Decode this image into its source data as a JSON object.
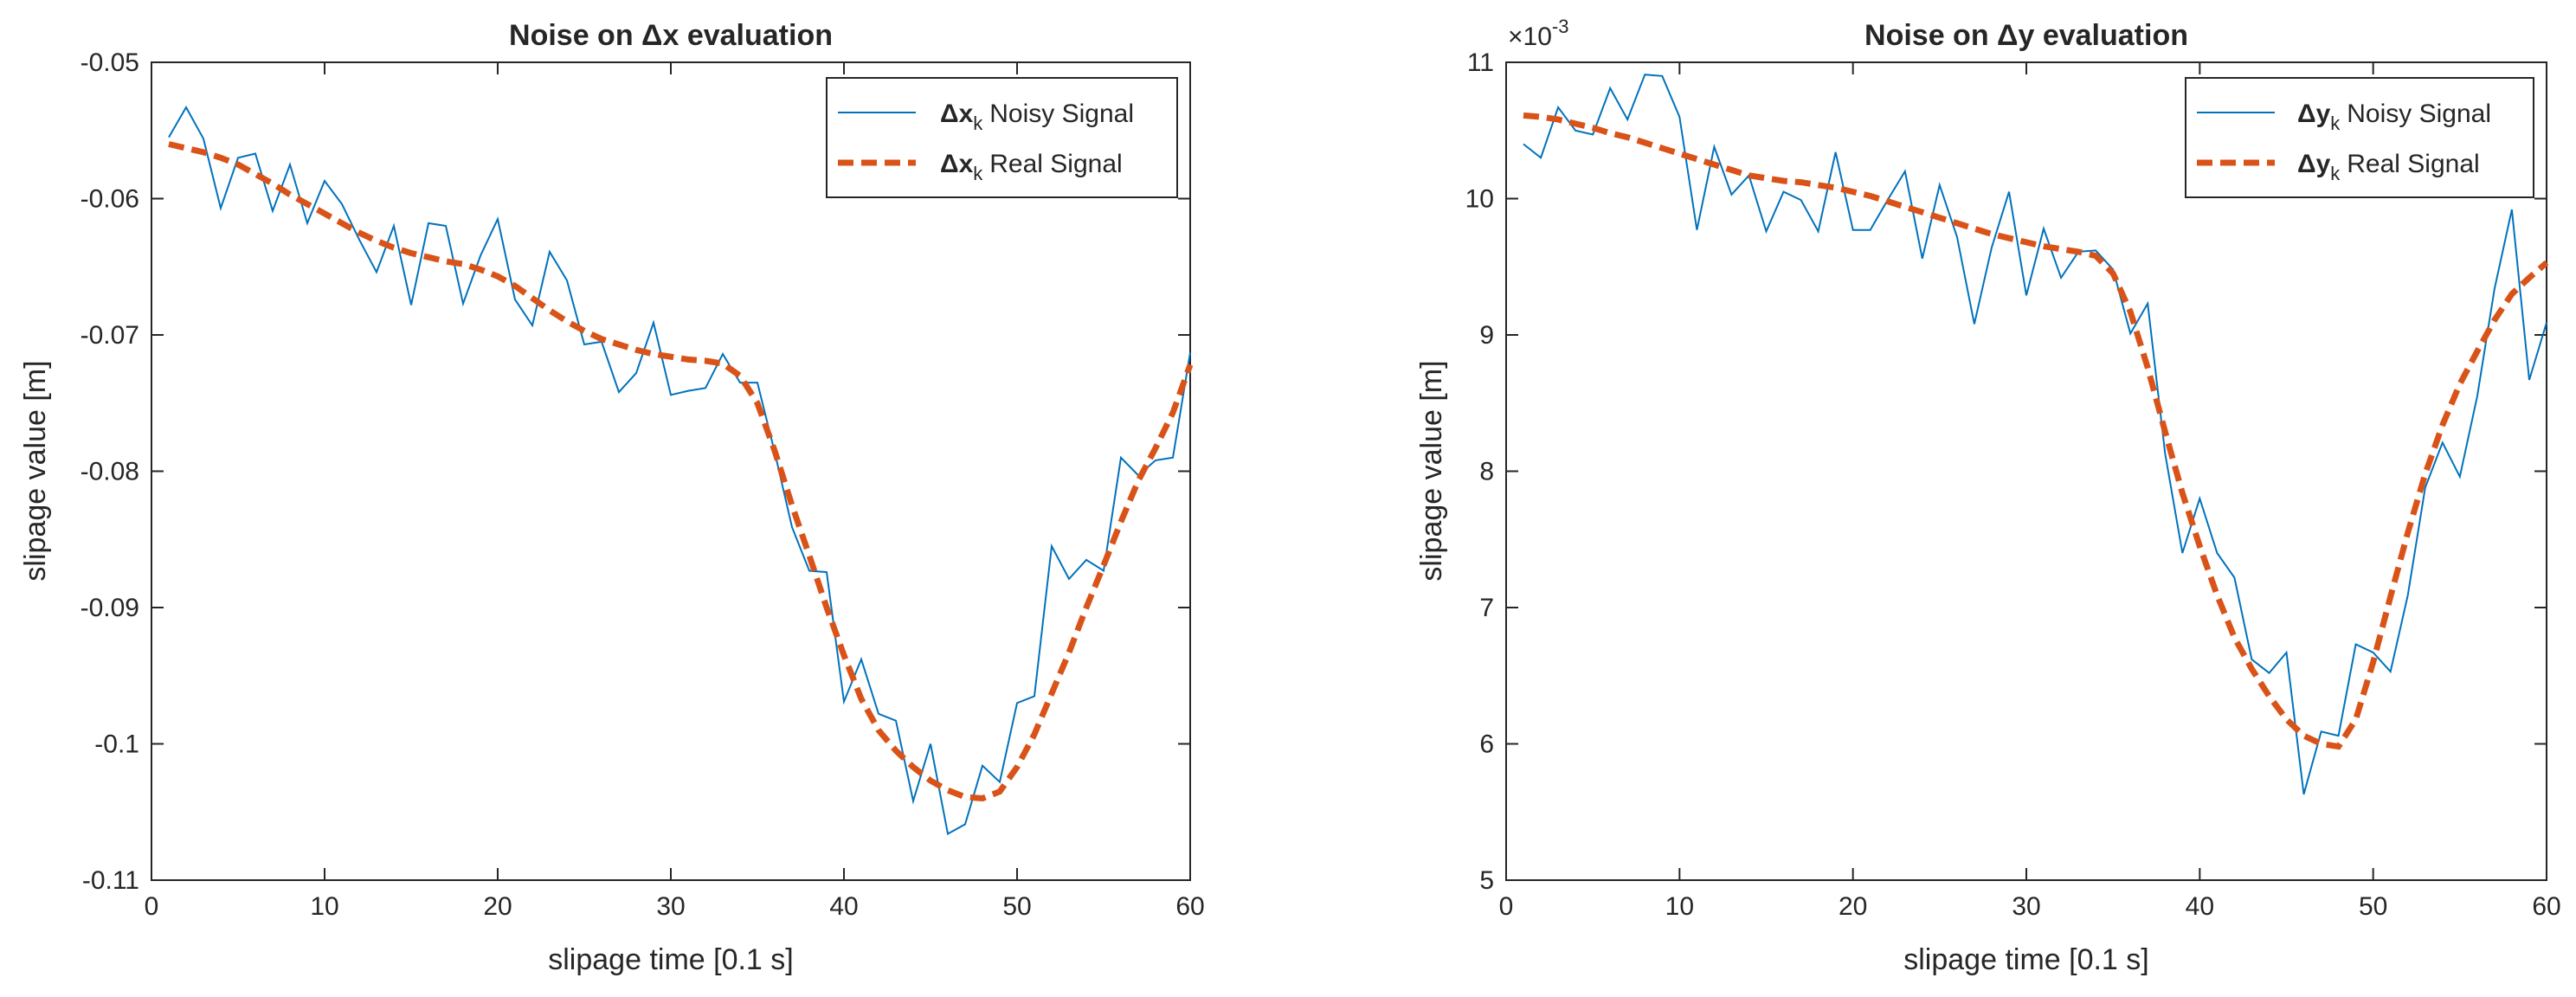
{
  "chart_data": [
    {
      "type": "line",
      "title": "Noise on Δx evaluation",
      "xlabel": "slipage time [0.1 s]",
      "ylabel": "slipage value [m]",
      "xlim": [
        0,
        60
      ],
      "ylim": [
        -0.11,
        -0.05
      ],
      "xticks": [
        0,
        10,
        20,
        30,
        40,
        50,
        60
      ],
      "xtick_labels": [
        "0",
        "10",
        "20",
        "30",
        "40",
        "50",
        "60"
      ],
      "yticks": [
        -0.11,
        -0.1,
        -0.09,
        -0.08,
        -0.07,
        -0.06,
        -0.05
      ],
      "ytick_labels": [
        "-0.11",
        "-0.1",
        "-0.09",
        "-0.08",
        "-0.07",
        "-0.06",
        "-0.05"
      ],
      "exponent_label": "",
      "legend_position": "top-right",
      "x": [
        1,
        2,
        3,
        4,
        5,
        6,
        7,
        8,
        9,
        10,
        11,
        12,
        13,
        14,
        15,
        16,
        17,
        18,
        19,
        20,
        21,
        22,
        23,
        24,
        25,
        26,
        27,
        28,
        29,
        30,
        31,
        32,
        33,
        34,
        35,
        36,
        37,
        38,
        39,
        40,
        41,
        42,
        43,
        44,
        45,
        46,
        47,
        48,
        49,
        50,
        51,
        52,
        53,
        54,
        55,
        56,
        57,
        58,
        59,
        60
      ],
      "series": [
        {
          "name": "Noisy Signal",
          "legend_symbol": "Δx",
          "legend_sub": "k",
          "legend_text": "Noisy Signal",
          "style": "solid",
          "color": "#0072BD",
          "values": [
            -0.0555,
            -0.0533,
            -0.0556,
            -0.0607,
            -0.057,
            -0.0567,
            -0.0609,
            -0.0575,
            -0.0618,
            -0.0587,
            -0.0604,
            -0.063,
            -0.0654,
            -0.062,
            -0.0678,
            -0.0618,
            -0.062,
            -0.0677,
            -0.0642,
            -0.0615,
            -0.0674,
            -0.0693,
            -0.0639,
            -0.066,
            -0.0707,
            -0.0705,
            -0.0742,
            -0.0728,
            -0.0691,
            -0.0744,
            -0.0741,
            -0.0739,
            -0.0714,
            -0.0735,
            -0.0735,
            -0.0786,
            -0.0841,
            -0.0873,
            -0.0874,
            -0.0969,
            -0.0938,
            -0.0978,
            -0.0983,
            -0.1042,
            -0.1,
            -0.1066,
            -0.1059,
            -0.1016,
            -0.1028,
            -0.097,
            -0.0965,
            -0.0855,
            -0.0879,
            -0.0865,
            -0.0873,
            -0.079,
            -0.0803,
            -0.0792,
            -0.079,
            -0.0713
          ]
        },
        {
          "name": "Real Signal",
          "legend_symbol": "Δx",
          "legend_sub": "k",
          "legend_text": "Real Signal",
          "style": "dashed",
          "color": "#D95319",
          "values": [
            -0.056,
            -0.0563,
            -0.0566,
            -0.057,
            -0.0575,
            -0.0582,
            -0.0589,
            -0.0597,
            -0.0604,
            -0.0611,
            -0.0618,
            -0.0625,
            -0.0631,
            -0.0636,
            -0.064,
            -0.0643,
            -0.0646,
            -0.0648,
            -0.0652,
            -0.0657,
            -0.0664,
            -0.0673,
            -0.0682,
            -0.069,
            -0.0697,
            -0.0703,
            -0.0707,
            -0.0711,
            -0.0714,
            -0.0716,
            -0.0718,
            -0.0719,
            -0.0721,
            -0.073,
            -0.075,
            -0.0785,
            -0.0825,
            -0.0862,
            -0.09,
            -0.0935,
            -0.0967,
            -0.099,
            -0.1005,
            -0.1017,
            -0.1027,
            -0.1034,
            -0.1039,
            -0.104,
            -0.1035,
            -0.1017,
            -0.0993,
            -0.0963,
            -0.0933,
            -0.09,
            -0.0869,
            -0.0837,
            -0.0807,
            -0.0783,
            -0.0757,
            -0.0722
          ]
        }
      ]
    },
    {
      "type": "line",
      "title": "Noise on Δy evaluation",
      "xlabel": "slipage time [0.1 s]",
      "ylabel": "slipage value [m]",
      "xlim": [
        0,
        60
      ],
      "ylim": [
        5,
        11
      ],
      "xticks": [
        0,
        10,
        20,
        30,
        40,
        50,
        60
      ],
      "xtick_labels": [
        "0",
        "10",
        "20",
        "30",
        "40",
        "50",
        "60"
      ],
      "yticks": [
        5,
        6,
        7,
        8,
        9,
        10,
        11
      ],
      "ytick_labels": [
        "5",
        "6",
        "7",
        "8",
        "9",
        "10",
        "11"
      ],
      "exponent_label": "×10",
      "exponent_power": "-3",
      "legend_position": "top-right",
      "x": [
        1,
        2,
        3,
        4,
        5,
        6,
        7,
        8,
        9,
        10,
        11,
        12,
        13,
        14,
        15,
        16,
        17,
        18,
        19,
        20,
        21,
        22,
        23,
        24,
        25,
        26,
        27,
        28,
        29,
        30,
        31,
        32,
        33,
        34,
        35,
        36,
        37,
        38,
        39,
        40,
        41,
        42,
        43,
        44,
        45,
        46,
        47,
        48,
        49,
        50,
        51,
        52,
        53,
        54,
        55,
        56,
        57,
        58,
        59,
        60
      ],
      "series": [
        {
          "name": "Noisy Signal",
          "legend_symbol": "Δy",
          "legend_sub": "k",
          "legend_text": "Noisy Signal",
          "style": "solid",
          "color": "#0072BD",
          "values": [
            10.4,
            10.3,
            10.67,
            10.5,
            10.47,
            10.81,
            10.58,
            10.91,
            10.9,
            10.6,
            9.77,
            10.38,
            10.03,
            10.17,
            9.76,
            10.05,
            9.99,
            9.76,
            10.34,
            9.77,
            9.77,
            9.99,
            10.2,
            9.56,
            10.1,
            9.72,
            9.08,
            9.64,
            10.05,
            9.29,
            9.78,
            9.42,
            9.61,
            9.62,
            9.48,
            9.01,
            9.23,
            8.13,
            7.4,
            7.8,
            7.4,
            7.22,
            6.62,
            6.52,
            6.67,
            5.63,
            6.09,
            6.06,
            6.73,
            6.67,
            6.53,
            7.09,
            7.88,
            8.21,
            7.96,
            8.55,
            9.34,
            9.92,
            8.67,
            9.09
          ]
        },
        {
          "name": "Real Signal",
          "legend_symbol": "Δy",
          "legend_sub": "k",
          "legend_text": "Real Signal",
          "style": "dashed",
          "color": "#D95319",
          "values": [
            10.61,
            10.6,
            10.58,
            10.55,
            10.52,
            10.48,
            10.45,
            10.41,
            10.37,
            10.33,
            10.29,
            10.25,
            10.21,
            10.17,
            10.15,
            10.13,
            10.12,
            10.1,
            10.08,
            10.05,
            10.02,
            9.98,
            9.94,
            9.9,
            9.86,
            9.82,
            9.78,
            9.74,
            9.71,
            9.68,
            9.65,
            9.63,
            9.61,
            9.58,
            9.45,
            9.17,
            8.76,
            8.29,
            7.84,
            7.45,
            7.09,
            6.78,
            6.55,
            6.35,
            6.18,
            6.06,
            6.0,
            5.98,
            6.18,
            6.6,
            7.08,
            7.55,
            7.98,
            8.34,
            8.64,
            8.88,
            9.11,
            9.3,
            9.42,
            9.53
          ]
        }
      ]
    }
  ]
}
